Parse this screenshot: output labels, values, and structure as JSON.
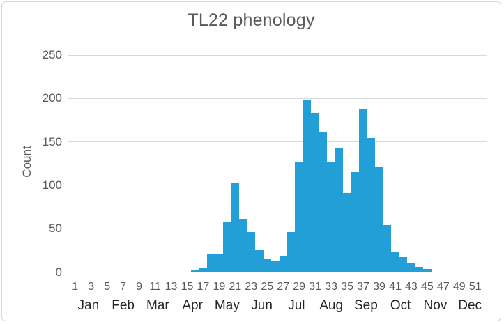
{
  "window": {
    "background": "#FFFFFF",
    "border_color": "#D6D6D6"
  },
  "chart_data": {
    "type": "bar",
    "title": "TL22 phenology",
    "xlabel": "",
    "ylabel": "Count",
    "x": [
      1,
      2,
      3,
      4,
      5,
      6,
      7,
      8,
      9,
      10,
      11,
      12,
      13,
      14,
      15,
      16,
      17,
      18,
      19,
      20,
      21,
      22,
      23,
      24,
      25,
      26,
      27,
      28,
      29,
      30,
      31,
      32,
      33,
      34,
      35,
      36,
      37,
      38,
      39,
      40,
      41,
      42,
      43,
      44,
      45,
      46,
      47,
      48,
      49,
      50,
      51,
      52
    ],
    "values": [
      0,
      0,
      0,
      0,
      0,
      0,
      0,
      0,
      0,
      0,
      0,
      0,
      0,
      0,
      0,
      2,
      4,
      20,
      21,
      58,
      102,
      60,
      46,
      25,
      15,
      12,
      18,
      46,
      127,
      198,
      183,
      161,
      127,
      143,
      91,
      115,
      188,
      154,
      120,
      54,
      23,
      17,
      10,
      6,
      3,
      0,
      0,
      0,
      0,
      0,
      0,
      0
    ],
    "ylim": [
      0,
      250
    ],
    "yticks": [
      0,
      50,
      100,
      150,
      200,
      250
    ],
    "xtick_labels": [
      "1",
      "3",
      "5",
      "7",
      "9",
      "11",
      "13",
      "15",
      "17",
      "19",
      "21",
      "23",
      "25",
      "27",
      "29",
      "31",
      "33",
      "35",
      "37",
      "39",
      "41",
      "43",
      "45",
      "47",
      "49",
      "51"
    ],
    "month_labels": [
      "Jan",
      "Feb",
      "Mar",
      "Apr",
      "May",
      "Jun",
      "Jul",
      "Aug",
      "Sep",
      "Oct",
      "Nov",
      "Dec"
    ],
    "grid": true,
    "legend_position": "none",
    "bar_color": "#219FD6",
    "gridline_color": "#D9D9D9",
    "title_color": "#595959",
    "tick_label_color": "#595959",
    "month_label_color": "#262626"
  }
}
